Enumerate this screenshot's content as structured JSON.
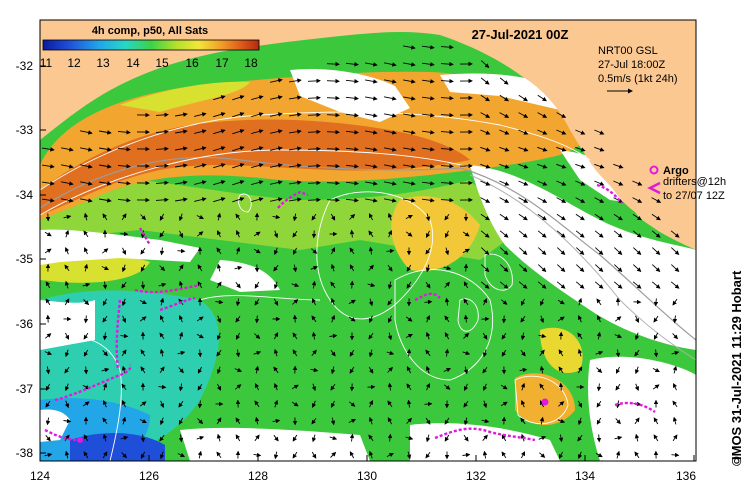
{
  "map": {
    "title": "27-Jul-2021 00Z",
    "x_ticks": [
      "124",
      "126",
      "128",
      "130",
      "132",
      "134",
      "136"
    ],
    "y_ticks": [
      "-32",
      "-33",
      "-34",
      "-35",
      "-36",
      "-37",
      "-38"
    ],
    "colorbar": {
      "title": "4h comp, p50, All Sats",
      "ticks": [
        "11",
        "12",
        "13",
        "14",
        "15",
        "16",
        "17",
        "18"
      ],
      "colors": [
        "#0a1aa0",
        "#1f4fd8",
        "#22a6e8",
        "#28d6c8",
        "#3cd24a",
        "#b8e02a",
        "#f2e63a",
        "#f2a22a",
        "#e0601c",
        "#b22a10"
      ]
    },
    "current_info": {
      "line1": "NRT00 GSL",
      "line2": "27-Jul 18:00Z",
      "line3": "0.5m/s (1kt 24h)"
    },
    "legend": {
      "argo_label": "Argo",
      "drifters_line1": "drifters@12h",
      "drifters_line2": "to 27/07 12Z"
    },
    "credit": "IMOS 31-Jul-2021 11:29 Hobart",
    "copyright": "©",
    "land_color": "#fcc892",
    "track_color": "#e018e0"
  }
}
